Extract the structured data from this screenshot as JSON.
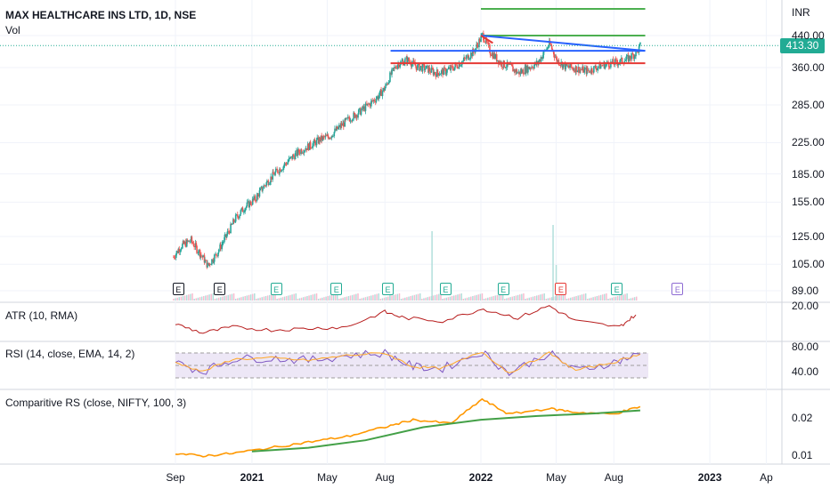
{
  "chart_data": {
    "type": "candlestick",
    "symbol_title": "MAX HEALTHCARE INS LTD, 1D, NSE",
    "volume_label": "Vol",
    "currency": "INR",
    "last_price": "413.30",
    "last_price_value": 413.3,
    "price_ticks": [
      "440.00",
      "360.00",
      "285.00",
      "225.00",
      "185.00",
      "155.00",
      "125.00",
      "105.00",
      "89.00"
    ],
    "price_tick_values": [
      440,
      360,
      285,
      225,
      185,
      155,
      125,
      105,
      89
    ],
    "price_scale": "log",
    "time_ticks": [
      {
        "label": "Sep",
        "bold": false
      },
      {
        "label": "2021",
        "bold": true
      },
      {
        "label": "May",
        "bold": false
      },
      {
        "label": "Aug",
        "bold": false
      },
      {
        "label": "2022",
        "bold": true
      },
      {
        "label": "May",
        "bold": false
      },
      {
        "label": "Aug",
        "bold": false
      },
      {
        "label": "2023",
        "bold": true
      },
      {
        "label": "Ap",
        "bold": false
      }
    ],
    "time_tick_dates": [
      "2020-09-01",
      "2021-01-01",
      "2021-05-01",
      "2021-08-01",
      "2022-01-01",
      "2022-05-01",
      "2022-08-01",
      "2023-01-01",
      "2023-04-01"
    ],
    "price_path": [
      [
        "2020-08-28",
        110
      ],
      [
        "2020-09-10",
        118
      ],
      [
        "2020-09-25",
        122
      ],
      [
        "2020-10-10",
        112
      ],
      [
        "2020-10-22",
        104
      ],
      [
        "2020-11-05",
        112
      ],
      [
        "2020-11-20",
        125
      ],
      [
        "2020-12-05",
        140
      ],
      [
        "2020-12-20",
        150
      ],
      [
        "2021-01-05",
        158
      ],
      [
        "2021-01-20",
        172
      ],
      [
        "2021-02-05",
        185
      ],
      [
        "2021-02-20",
        195
      ],
      [
        "2021-03-05",
        205
      ],
      [
        "2021-03-20",
        215
      ],
      [
        "2021-04-05",
        222
      ],
      [
        "2021-04-20",
        230
      ],
      [
        "2021-05-05",
        235
      ],
      [
        "2021-05-20",
        248
      ],
      [
        "2021-06-05",
        262
      ],
      [
        "2021-06-20",
        272
      ],
      [
        "2021-07-05",
        285
      ],
      [
        "2021-07-20",
        300
      ],
      [
        "2021-08-01",
        318
      ],
      [
        "2021-08-10",
        345
      ],
      [
        "2021-08-20",
        368
      ],
      [
        "2021-09-05",
        378
      ],
      [
        "2021-09-20",
        362
      ],
      [
        "2021-10-05",
        358
      ],
      [
        "2021-10-20",
        348
      ],
      [
        "2021-11-05",
        352
      ],
      [
        "2021-11-20",
        362
      ],
      [
        "2021-12-05",
        378
      ],
      [
        "2021-12-20",
        398
      ],
      [
        "2022-01-03",
        442
      ],
      [
        "2022-01-15",
        398
      ],
      [
        "2022-02-01",
        370
      ],
      [
        "2022-02-15",
        362
      ],
      [
        "2022-03-01",
        348
      ],
      [
        "2022-03-15",
        358
      ],
      [
        "2022-04-01",
        370
      ],
      [
        "2022-04-20",
        418
      ],
      [
        "2022-05-01",
        378
      ],
      [
        "2022-05-15",
        362
      ],
      [
        "2022-06-01",
        358
      ],
      [
        "2022-06-20",
        352
      ],
      [
        "2022-07-05",
        362
      ],
      [
        "2022-07-20",
        368
      ],
      [
        "2022-08-05",
        372
      ],
      [
        "2022-08-20",
        378
      ],
      [
        "2022-09-05",
        395
      ],
      [
        "2022-09-12",
        413.3
      ]
    ],
    "horizontal_levels": [
      {
        "color": "#4caf50",
        "price": 520,
        "from": "2022-01-01",
        "to": "2022-09-20"
      },
      {
        "color": "#4caf50",
        "price": 440,
        "from": "2022-01-01",
        "to": "2022-09-20"
      },
      {
        "color": "#2962ff",
        "price": 400,
        "from": "2021-08-10",
        "to": "2022-09-20"
      },
      {
        "color": "#e53935",
        "price": 370,
        "from": "2021-08-10",
        "to": "2022-09-20"
      }
    ],
    "trend_lines": [
      {
        "color": "#2962ff",
        "from": [
          "2022-01-01",
          440
        ],
        "to": [
          "2022-09-20",
          400
        ]
      },
      {
        "color": "#e53935",
        "from": [
          "2022-01-01",
          440
        ],
        "to": [
          "2022-01-20",
          420
        ]
      }
    ],
    "earnings_markers": [
      {
        "date": "2020-09-05",
        "color": "#131722",
        "label": "E"
      },
      {
        "date": "2020-11-10",
        "color": "#131722",
        "label": "E"
      },
      {
        "date": "2021-02-08",
        "color": "#22ab94",
        "label": "E"
      },
      {
        "date": "2021-05-15",
        "color": "#22ab94",
        "label": "E"
      },
      {
        "date": "2021-08-05",
        "color": "#22ab94",
        "label": "E"
      },
      {
        "date": "2021-11-05",
        "color": "#22ab94",
        "label": "E"
      },
      {
        "date": "2022-02-05",
        "color": "#22ab94",
        "label": "E"
      },
      {
        "date": "2022-05-08",
        "color": "#e53935",
        "label": "E"
      },
      {
        "date": "2022-08-05",
        "color": "#22ab94",
        "label": "E"
      },
      {
        "date": "2022-11-10",
        "color": "#8e6bd3",
        "label": "E"
      }
    ],
    "indicators": [
      {
        "name": "ATR (10, RMA)",
        "ticks": [
          "20.00"
        ],
        "color": "#b71c1c",
        "series": [
          [
            "2020-09-01",
            14
          ],
          [
            "2020-10-15",
            11
          ],
          [
            "2020-12-01",
            13
          ],
          [
            "2021-02-01",
            12
          ],
          [
            "2021-04-01",
            12.5
          ],
          [
            "2021-06-01",
            13
          ],
          [
            "2021-08-01",
            18
          ],
          [
            "2021-09-01",
            16
          ],
          [
            "2021-11-01",
            15
          ],
          [
            "2022-01-05",
            19
          ],
          [
            "2022-03-01",
            16
          ],
          [
            "2022-04-20",
            20
          ],
          [
            "2022-06-01",
            15
          ],
          [
            "2022-08-10",
            13
          ],
          [
            "2022-09-05",
            17
          ]
        ]
      },
      {
        "name": "RSI (14, close, EMA, 14, 2)",
        "ticks": [
          "80.00",
          "40.00"
        ],
        "upper_band": 70,
        "lower_band": 30,
        "color": "#7e57c2",
        "signal_color": "#ffa726",
        "series": [
          [
            "2020-09-01",
            55
          ],
          [
            "2020-10-15",
            40
          ],
          [
            "2020-12-01",
            60
          ],
          [
            "2021-02-01",
            62
          ],
          [
            "2021-04-01",
            58
          ],
          [
            "2021-06-01",
            66
          ],
          [
            "2021-08-01",
            70
          ],
          [
            "2021-09-15",
            48
          ],
          [
            "2021-11-01",
            45
          ],
          [
            "2022-01-03",
            72
          ],
          [
            "2022-02-15",
            38
          ],
          [
            "2022-04-20",
            70
          ],
          [
            "2022-06-01",
            42
          ],
          [
            "2022-08-01",
            55
          ],
          [
            "2022-09-12",
            68
          ]
        ]
      },
      {
        "name": "Comparitive RS (close, NIFTY, 100, 3)",
        "ticks": [
          "0.02",
          "0.01"
        ],
        "color": "#ff9800",
        "ma_color": "#43a047",
        "series": [
          [
            "2020-09-01",
            0.0105
          ],
          [
            "2020-10-15",
            0.0098
          ],
          [
            "2020-12-01",
            0.0105
          ],
          [
            "2021-02-01",
            0.012
          ],
          [
            "2021-04-01",
            0.0135
          ],
          [
            "2021-06-01",
            0.015
          ],
          [
            "2021-08-01",
            0.0175
          ],
          [
            "2021-09-15",
            0.0195
          ],
          [
            "2021-11-15",
            0.0185
          ],
          [
            "2022-01-03",
            0.025
          ],
          [
            "2022-02-15",
            0.021
          ],
          [
            "2022-04-20",
            0.0225
          ],
          [
            "2022-06-01",
            0.0215
          ],
          [
            "2022-08-01",
            0.021
          ],
          [
            "2022-09-12",
            0.023
          ]
        ],
        "ma_series": [
          [
            "2021-01-01",
            0.011
          ],
          [
            "2021-04-01",
            0.012
          ],
          [
            "2021-07-01",
            0.014
          ],
          [
            "2021-10-01",
            0.0175
          ],
          [
            "2022-01-01",
            0.0195
          ],
          [
            "2022-04-01",
            0.0205
          ],
          [
            "2022-07-01",
            0.0212
          ],
          [
            "2022-09-12",
            0.022
          ]
        ]
      }
    ]
  }
}
